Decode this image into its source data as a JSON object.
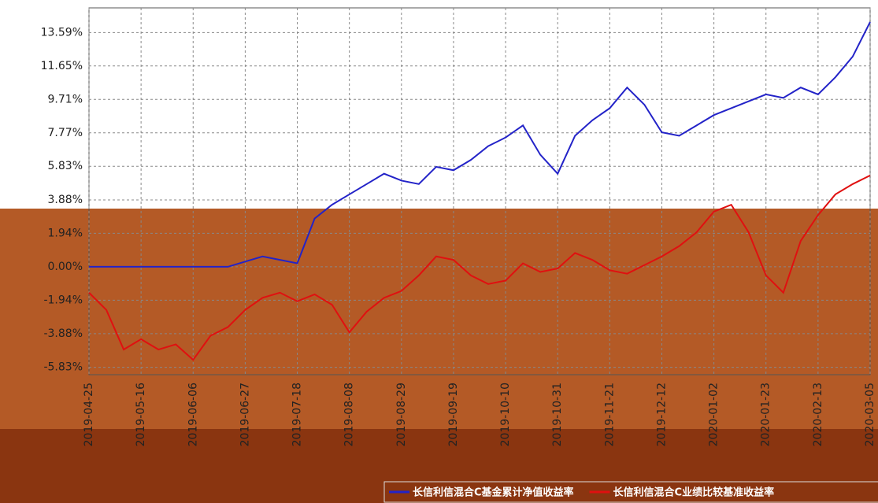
{
  "chart_data": {
    "type": "line",
    "categories": [
      "2019-04-25",
      null,
      null,
      "2019-05-16",
      null,
      null,
      "2019-06-06",
      null,
      null,
      "2019-06-27",
      null,
      null,
      "2019-07-18",
      null,
      null,
      "2019-08-08",
      null,
      null,
      "2019-08-29",
      null,
      null,
      "2019-09-19",
      null,
      null,
      "2019-10-10",
      null,
      null,
      "2019-10-31",
      null,
      null,
      "2019-11-21",
      null,
      null,
      "2019-12-12",
      null,
      null,
      "2020-01-02",
      null,
      null,
      "2020-01-23",
      null,
      null,
      "2020-02-13",
      null,
      null,
      "2020-03-05"
    ],
    "series": [
      {
        "name": "长信利信混合C基金累计净值收益率",
        "color": "#2323c8",
        "values": [
          0,
          0,
          0,
          0,
          0,
          0,
          0,
          0,
          0,
          0.3,
          0.6,
          0.4,
          0.2,
          2.8,
          3.6,
          4.2,
          4.8,
          5.4,
          5.0,
          4.8,
          5.8,
          5.6,
          6.2,
          7.0,
          7.5,
          8.2,
          6.5,
          5.4,
          7.6,
          8.5,
          9.2,
          10.4,
          9.4,
          7.8,
          7.6,
          8.2,
          8.8,
          9.2,
          9.6,
          10.0,
          9.8,
          10.4,
          10.0,
          11.0,
          12.2,
          14.2
        ]
      },
      {
        "name": "长信利信混合C业绩比较基准收益率",
        "color": "#e01010",
        "values": [
          -1.5,
          -2.5,
          -4.8,
          -4.2,
          -4.8,
          -4.5,
          -5.4,
          -4.0,
          -3.5,
          -2.5,
          -1.8,
          -1.5,
          -2.0,
          -1.6,
          -2.2,
          -3.8,
          -2.6,
          -1.8,
          -1.4,
          -0.5,
          0.6,
          0.4,
          -0.5,
          -1.0,
          -0.8,
          0.2,
          -0.3,
          -0.1,
          0.8,
          0.4,
          -0.2,
          -0.4,
          0.1,
          0.6,
          1.2,
          2.0,
          3.2,
          3.6,
          2.0,
          -0.5,
          -1.5,
          1.5,
          3.0,
          4.2,
          4.8,
          5.3
        ]
      }
    ],
    "ylim": [
      -6.26,
      15.02
    ],
    "yticks": [
      {
        "value": -5.83,
        "label": "-5.83%"
      },
      {
        "value": -3.88,
        "label": "-3.88%"
      },
      {
        "value": -1.94,
        "label": "-1.94%"
      },
      {
        "value": 0,
        "label": "0.00%"
      },
      {
        "value": 1.94,
        "label": "1.94%"
      },
      {
        "value": 3.88,
        "label": "3.88%"
      },
      {
        "value": 5.83,
        "label": "5.83%"
      },
      {
        "value": 7.77,
        "label": "7.77%"
      },
      {
        "value": 9.71,
        "label": "9.71%"
      },
      {
        "value": 11.65,
        "label": "11.65%"
      },
      {
        "value": 13.59,
        "label": "13.59%"
      }
    ],
    "grid": true
  }
}
